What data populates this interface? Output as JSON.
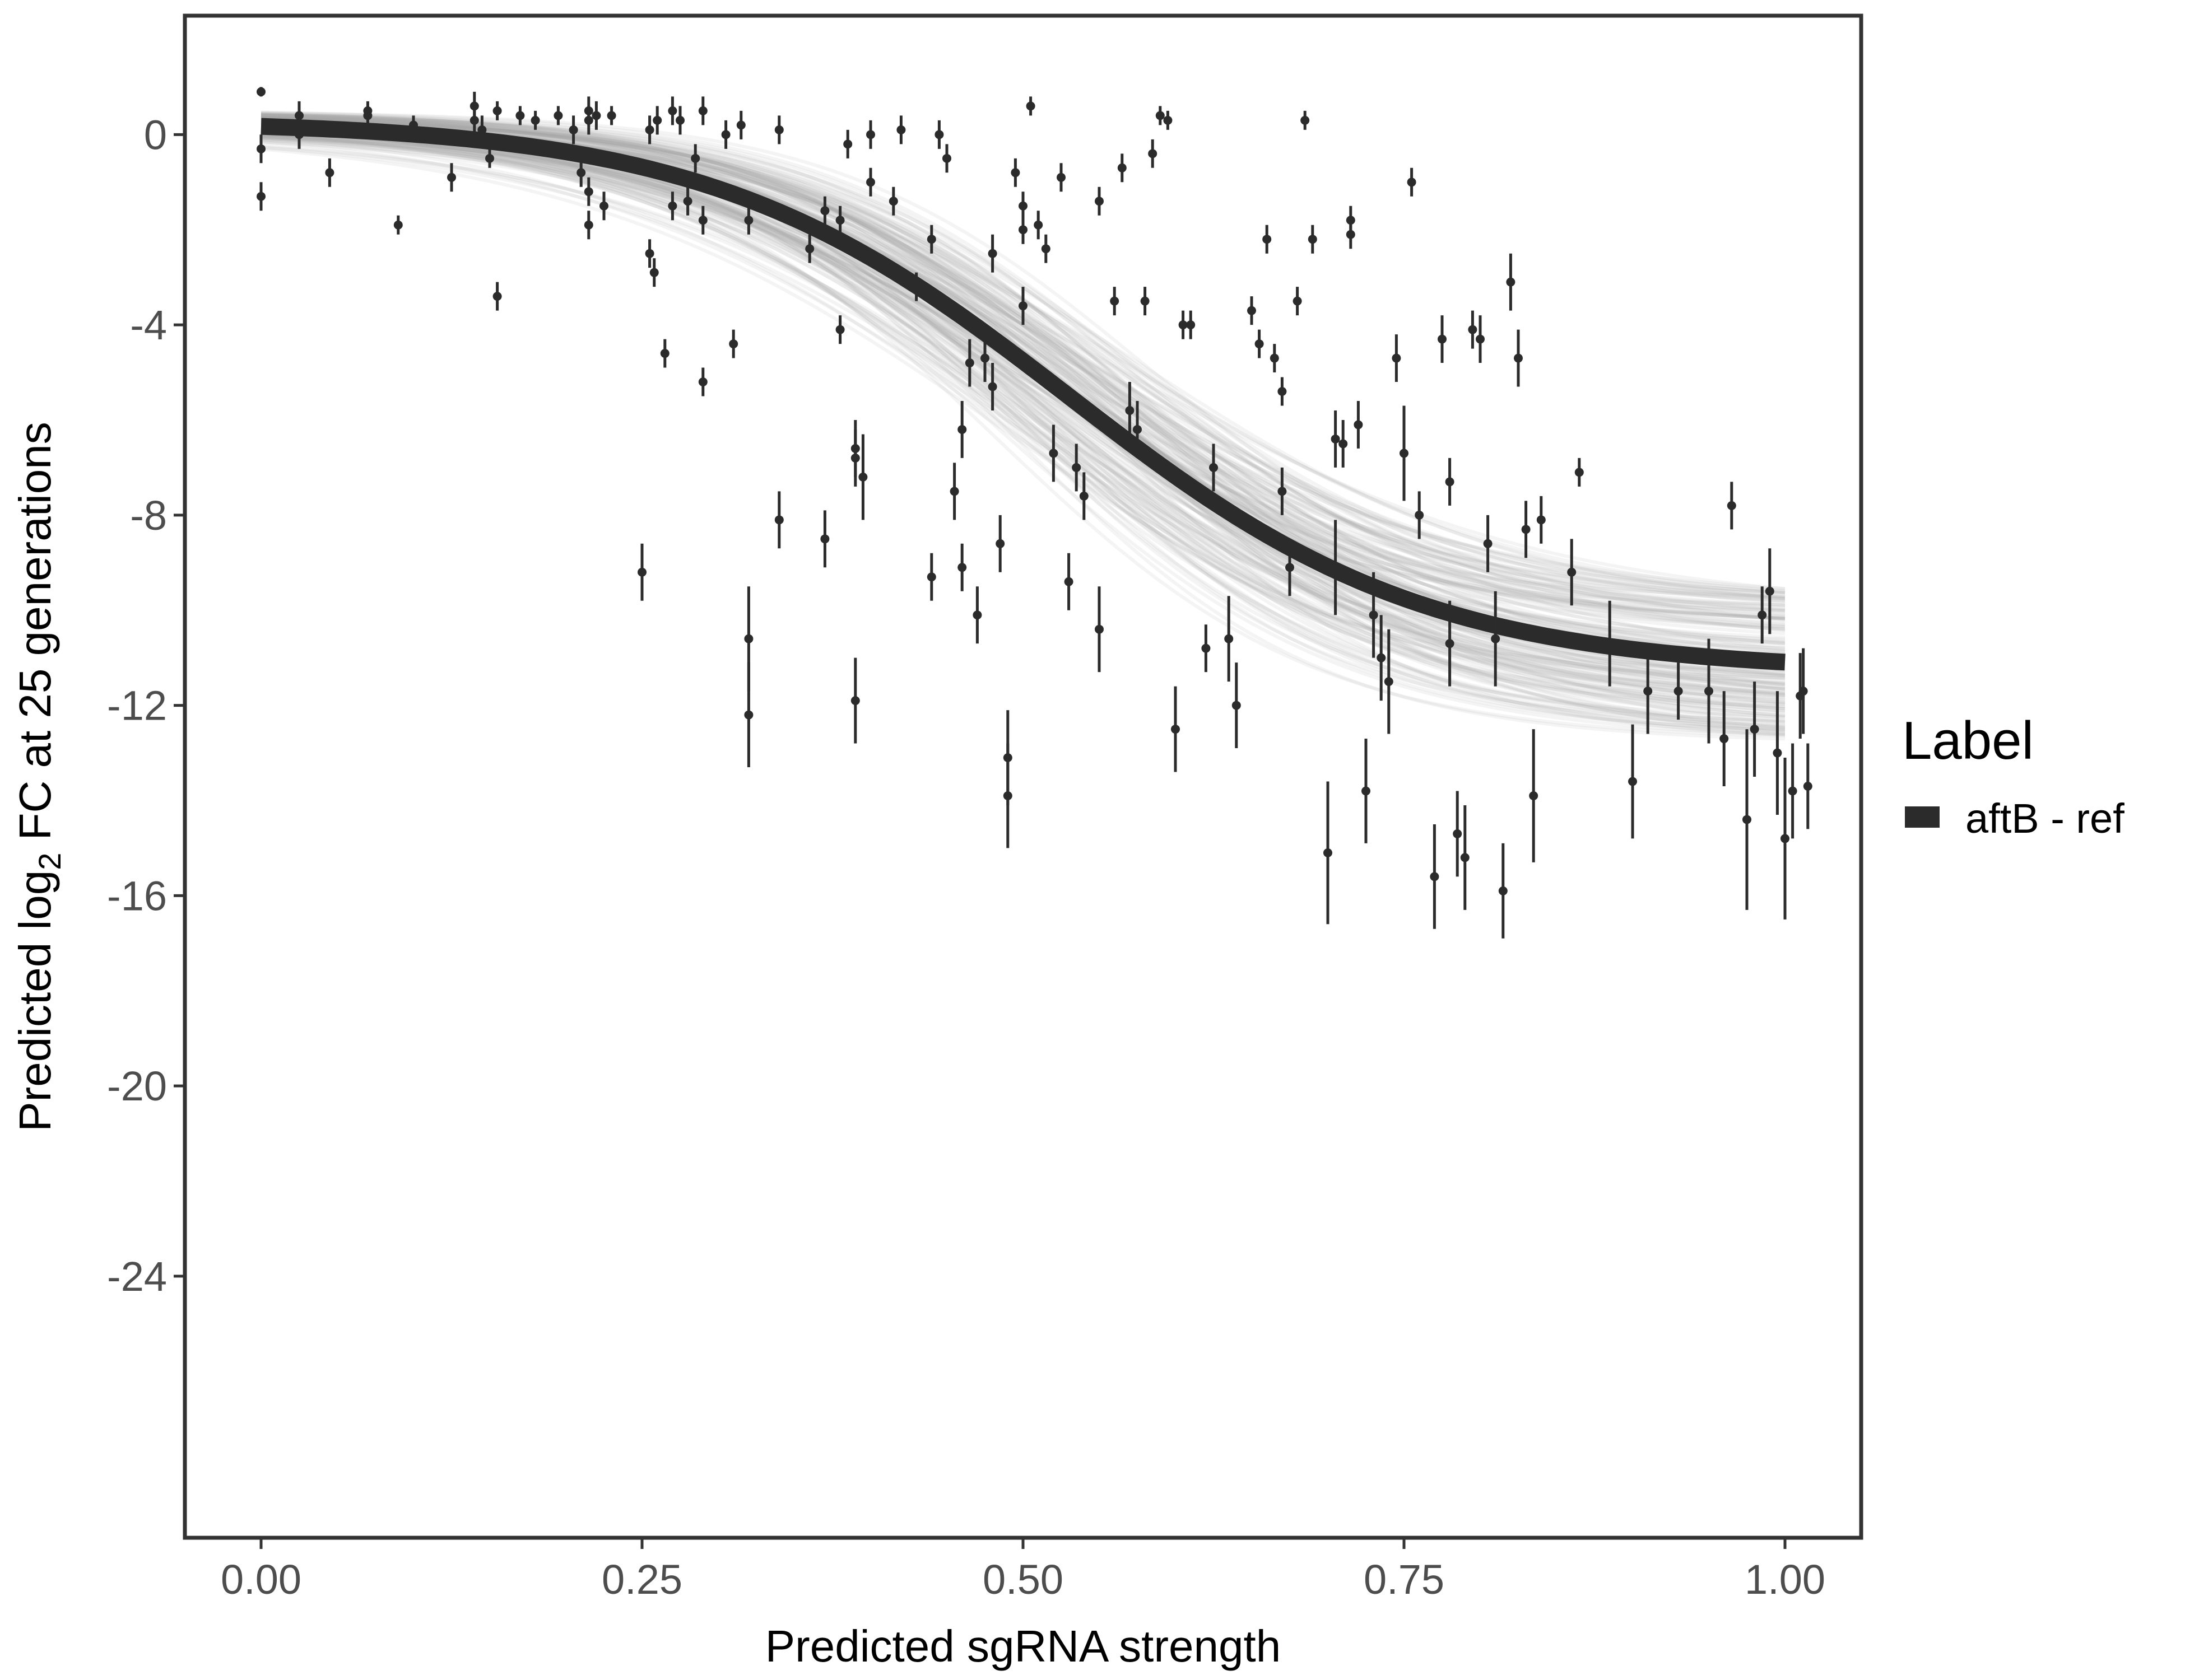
{
  "chart_data": {
    "type": "scatter",
    "title": "",
    "xlabel": "Predicted sgRNA strength",
    "ylabel_parts": {
      "pre": "Predicted  log",
      "sub": "2",
      "post": " FC at 25 generations"
    },
    "xlim": [
      -0.05,
      1.05
    ],
    "ylim": [
      -29.5,
      2.5
    ],
    "xticks": [
      0.0,
      0.25,
      0.5,
      0.75,
      1.0
    ],
    "xtick_labels": [
      "0.00",
      "0.25",
      "0.50",
      "0.75",
      "1.00"
    ],
    "yticks": [
      0,
      -4,
      -8,
      -12,
      -16,
      -20,
      -24
    ],
    "ytick_labels": [
      "0",
      "-4",
      "-8",
      "-12",
      "-16",
      "-20",
      "-24"
    ],
    "grid": false,
    "legend": {
      "title": "Label",
      "placement": "right",
      "entries": [
        {
          "label": "aftB - ref",
          "color": "#2b2b2b"
        }
      ]
    },
    "fit_curve": {
      "model": "logistic",
      "top": 0.3,
      "bottom": -11.3,
      "midpoint": 0.53,
      "slope": 8.5,
      "color": "#2b2b2b"
    },
    "posterior_band": {
      "color": "#a6a6a6",
      "n_draws": 160
    },
    "points": [
      [
        0.0,
        0.9,
        0.1
      ],
      [
        0.0,
        -0.3,
        0.3
      ],
      [
        0.0,
        -1.3,
        0.3
      ],
      [
        0.025,
        0.4,
        0.3
      ],
      [
        0.025,
        0.0,
        0.3
      ],
      [
        0.045,
        -0.8,
        0.3
      ],
      [
        0.07,
        0.5,
        0.2
      ],
      [
        0.07,
        0.4,
        0.2
      ],
      [
        0.09,
        -1.9,
        0.2
      ],
      [
        0.1,
        0.2,
        0.2
      ],
      [
        0.125,
        -0.9,
        0.3
      ],
      [
        0.14,
        0.6,
        0.3
      ],
      [
        0.14,
        0.3,
        0.3
      ],
      [
        0.145,
        0.1,
        0.3
      ],
      [
        0.15,
        -0.5,
        0.2
      ],
      [
        0.155,
        0.5,
        0.2
      ],
      [
        0.155,
        -3.4,
        0.3
      ],
      [
        0.17,
        0.4,
        0.2
      ],
      [
        0.18,
        0.3,
        0.2
      ],
      [
        0.195,
        0.4,
        0.2
      ],
      [
        0.205,
        0.1,
        0.3
      ],
      [
        0.21,
        -0.8,
        0.3
      ],
      [
        0.215,
        0.5,
        0.3
      ],
      [
        0.215,
        0.3,
        0.3
      ],
      [
        0.215,
        -1.2,
        0.3
      ],
      [
        0.215,
        -1.9,
        0.3
      ],
      [
        0.22,
        0.4,
        0.3
      ],
      [
        0.225,
        -1.5,
        0.3
      ],
      [
        0.23,
        0.4,
        0.2
      ],
      [
        0.25,
        -9.2,
        0.6
      ],
      [
        0.255,
        0.1,
        0.3
      ],
      [
        0.255,
        -2.5,
        0.3
      ],
      [
        0.258,
        -2.9,
        0.3
      ],
      [
        0.26,
        0.3,
        0.3
      ],
      [
        0.265,
        -4.6,
        0.3
      ],
      [
        0.27,
        0.5,
        0.3
      ],
      [
        0.27,
        -1.5,
        0.3
      ],
      [
        0.275,
        0.3,
        0.3
      ],
      [
        0.28,
        -1.4,
        0.3
      ],
      [
        0.285,
        -0.5,
        0.3
      ],
      [
        0.29,
        0.5,
        0.3
      ],
      [
        0.29,
        -1.8,
        0.3
      ],
      [
        0.29,
        -5.2,
        0.3
      ],
      [
        0.305,
        0.0,
        0.3
      ],
      [
        0.31,
        -4.4,
        0.3
      ],
      [
        0.315,
        0.2,
        0.3
      ],
      [
        0.32,
        -10.6,
        1.1
      ],
      [
        0.32,
        -12.2,
        1.1
      ],
      [
        0.32,
        -1.8,
        0.3
      ],
      [
        0.34,
        0.1,
        0.3
      ],
      [
        0.34,
        -8.1,
        0.6
      ],
      [
        0.36,
        -2.4,
        0.3
      ],
      [
        0.37,
        -8.5,
        0.6
      ],
      [
        0.37,
        -1.6,
        0.3
      ],
      [
        0.38,
        -1.8,
        0.3
      ],
      [
        0.38,
        -4.1,
        0.3
      ],
      [
        0.385,
        -0.2,
        0.3
      ],
      [
        0.39,
        -11.9,
        0.9
      ],
      [
        0.39,
        -6.8,
        0.6
      ],
      [
        0.39,
        -6.6,
        0.6
      ],
      [
        0.395,
        -7.2,
        0.9
      ],
      [
        0.4,
        0.0,
        0.3
      ],
      [
        0.4,
        -1.0,
        0.3
      ],
      [
        0.415,
        -1.4,
        0.3
      ],
      [
        0.42,
        0.1,
        0.3
      ],
      [
        0.43,
        -3.2,
        0.3
      ],
      [
        0.44,
        -9.3,
        0.5
      ],
      [
        0.445,
        0.0,
        0.3
      ],
      [
        0.44,
        -2.2,
        0.3
      ],
      [
        0.45,
        -0.5,
        0.3
      ],
      [
        0.455,
        -7.5,
        0.6
      ],
      [
        0.46,
        -6.2,
        0.6
      ],
      [
        0.465,
        -4.8,
        0.5
      ],
      [
        0.46,
        -9.1,
        0.5
      ],
      [
        0.47,
        -10.1,
        0.6
      ],
      [
        0.475,
        -4.7,
        0.5
      ],
      [
        0.48,
        -2.5,
        0.4
      ],
      [
        0.48,
        -5.3,
        0.5
      ],
      [
        0.485,
        -8.6,
        0.6
      ],
      [
        0.49,
        -13.1,
        1.0
      ],
      [
        0.49,
        -13.9,
        1.1
      ],
      [
        0.495,
        -0.8,
        0.3
      ],
      [
        0.5,
        -1.5,
        0.3
      ],
      [
        0.5,
        -2.0,
        0.3
      ],
      [
        0.5,
        -3.6,
        0.4
      ],
      [
        0.505,
        0.6,
        0.2
      ],
      [
        0.51,
        -1.9,
        0.3
      ],
      [
        0.515,
        -2.4,
        0.3
      ],
      [
        0.52,
        -6.7,
        0.6
      ],
      [
        0.525,
        -0.9,
        0.3
      ],
      [
        0.53,
        -9.4,
        0.6
      ],
      [
        0.535,
        -7.0,
        0.5
      ],
      [
        0.54,
        -7.6,
        0.5
      ],
      [
        0.55,
        -10.4,
        0.9
      ],
      [
        0.55,
        -1.4,
        0.3
      ],
      [
        0.56,
        -3.5,
        0.3
      ],
      [
        0.565,
        -0.7,
        0.3
      ],
      [
        0.57,
        -5.8,
        0.6
      ],
      [
        0.575,
        -6.2,
        0.6
      ],
      [
        0.58,
        -3.5,
        0.3
      ],
      [
        0.585,
        -0.4,
        0.3
      ],
      [
        0.59,
        0.4,
        0.2
      ],
      [
        0.595,
        0.3,
        0.2
      ],
      [
        0.6,
        -12.5,
        0.9
      ],
      [
        0.605,
        -4.0,
        0.3
      ],
      [
        0.61,
        -4.0,
        0.3
      ],
      [
        0.62,
        -10.8,
        0.5
      ],
      [
        0.625,
        -7.0,
        0.5
      ],
      [
        0.635,
        -10.6,
        0.9
      ],
      [
        0.64,
        -12.0,
        0.9
      ],
      [
        0.65,
        -3.7,
        0.3
      ],
      [
        0.655,
        -4.4,
        0.3
      ],
      [
        0.66,
        -2.2,
        0.3
      ],
      [
        0.665,
        -4.7,
        0.3
      ],
      [
        0.67,
        -5.4,
        0.3
      ],
      [
        0.67,
        -7.5,
        0.5
      ],
      [
        0.675,
        -9.1,
        0.6
      ],
      [
        0.68,
        -3.5,
        0.3
      ],
      [
        0.685,
        0.3,
        0.2
      ],
      [
        0.69,
        -2.2,
        0.3
      ],
      [
        0.7,
        -15.1,
        1.5
      ],
      [
        0.705,
        -6.4,
        0.6
      ],
      [
        0.705,
        -9.1,
        1.0
      ],
      [
        0.71,
        -6.5,
        0.5
      ],
      [
        0.715,
        -1.8,
        0.3
      ],
      [
        0.715,
        -2.1,
        0.3
      ],
      [
        0.72,
        -6.1,
        0.5
      ],
      [
        0.725,
        -13.8,
        1.1
      ],
      [
        0.73,
        -10.1,
        0.9
      ],
      [
        0.735,
        -11.0,
        0.9
      ],
      [
        0.74,
        -11.5,
        1.1
      ],
      [
        0.745,
        -4.7,
        0.5
      ],
      [
        0.75,
        -6.7,
        1.0
      ],
      [
        0.755,
        -1.0,
        0.3
      ],
      [
        0.76,
        -8.0,
        0.5
      ],
      [
        0.77,
        -15.6,
        1.1
      ],
      [
        0.775,
        -4.3,
        0.5
      ],
      [
        0.78,
        -7.3,
        0.5
      ],
      [
        0.78,
        -10.7,
        0.9
      ],
      [
        0.785,
        -14.7,
        0.9
      ],
      [
        0.79,
        -15.2,
        1.1
      ],
      [
        0.795,
        -4.1,
        0.4
      ],
      [
        0.8,
        -4.3,
        0.5
      ],
      [
        0.805,
        -8.6,
        0.6
      ],
      [
        0.81,
        -10.6,
        1.0
      ],
      [
        0.815,
        -15.9,
        1.0
      ],
      [
        0.82,
        -3.1,
        0.6
      ],
      [
        0.825,
        -4.7,
        0.6
      ],
      [
        0.83,
        -8.3,
        0.6
      ],
      [
        0.835,
        -13.9,
        1.4
      ],
      [
        0.84,
        -8.1,
        0.5
      ],
      [
        0.86,
        -9.2,
        0.7
      ],
      [
        0.865,
        -7.1,
        0.3
      ],
      [
        0.885,
        -10.7,
        0.9
      ],
      [
        0.9,
        -13.6,
        1.2
      ],
      [
        0.91,
        -11.7,
        0.9
      ],
      [
        0.93,
        -11.7,
        0.6
      ],
      [
        0.95,
        -11.7,
        1.1
      ],
      [
        0.96,
        -12.7,
        1.0
      ],
      [
        0.965,
        -7.8,
        0.5
      ],
      [
        0.975,
        -14.4,
        1.9
      ],
      [
        0.98,
        -12.5,
        1.0
      ],
      [
        0.985,
        -10.1,
        0.6
      ],
      [
        0.99,
        -9.6,
        0.9
      ],
      [
        0.995,
        -13.0,
        1.3
      ],
      [
        1.0,
        -14.8,
        1.7
      ],
      [
        1.005,
        -13.8,
        1.0
      ],
      [
        1.01,
        -11.8,
        0.9
      ],
      [
        1.012,
        -11.7,
        0.9
      ],
      [
        1.015,
        -13.7,
        0.9
      ]
    ]
  }
}
